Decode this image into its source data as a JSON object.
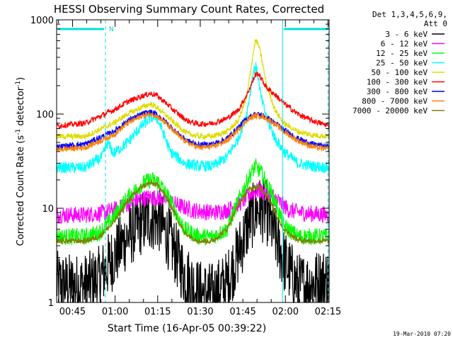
{
  "chart_data": {
    "type": "line",
    "title": "HESSI Observing Summary Count Rates, Corrected",
    "xlabel": "Start Time (16-Apr-05 00:39:22)",
    "ylabel_main": "Corrected Count Rate (s",
    "ylabel_sup1": "-1",
    "ylabel_mid": " detector",
    "ylabel_sup2": "-1",
    "ylabel_end": ")",
    "yscale": "log",
    "ylim": [
      1,
      1000
    ],
    "xlim_minutes": [
      0,
      96
    ],
    "x_ticks": [
      {
        "label": "00:45",
        "t": 5.6
      },
      {
        "label": "01:00",
        "t": 20.6
      },
      {
        "label": "01:15",
        "t": 35.6
      },
      {
        "label": "01:30",
        "t": 50.6
      },
      {
        "label": "01:45",
        "t": 65.6
      },
      {
        "label": "02:00",
        "t": 80.6
      },
      {
        "label": "02:15",
        "t": 95.6
      }
    ],
    "y_ticks": [
      {
        "label": "1",
        "v": 1
      },
      {
        "label": "10",
        "v": 10
      },
      {
        "label": "100",
        "v": 100
      },
      {
        "label": "1000",
        "v": 1000
      }
    ],
    "legend_header_1": "Det 1,3,4,5,6,9,",
    "legend_header_2": "Att 0",
    "legend_position": "right",
    "night_markers": [
      {
        "start": 0,
        "end": 17.2,
        "label": ""
      },
      {
        "start": 79.6,
        "end": 96,
        "label": ""
      }
    ],
    "saa_label": "N",
    "vertical_lines": [
      {
        "t": 17.2,
        "style": "dashed"
      },
      {
        "t": 79.6,
        "style": "solid"
      },
      {
        "t": 95.6,
        "style": "dashed"
      }
    ],
    "series": [
      {
        "name": "3 - 6 keV",
        "color": "#000000",
        "times": [
          0,
          5,
          10,
          15,
          20,
          25,
          30,
          33,
          36,
          40,
          45,
          50,
          55,
          60,
          65,
          68,
          71,
          74,
          77,
          80,
          85,
          90,
          96
        ],
        "values": [
          1.6,
          1.5,
          1.5,
          1.8,
          3.0,
          5.0,
          7.0,
          7.8,
          7.5,
          4.5,
          2.0,
          1.3,
          1.2,
          1.6,
          4.0,
          7.5,
          10.0,
          9.0,
          5.0,
          2.8,
          1.5,
          1.6,
          1.8
        ]
      },
      {
        "name": "6 - 12 keV",
        "color": "#ff00ff",
        "times": [
          0,
          10,
          17,
          22,
          27,
          32,
          35,
          38,
          42,
          48,
          55,
          60,
          65,
          68,
          71,
          74,
          78,
          82,
          88,
          96
        ],
        "values": [
          8.5,
          8.5,
          9.0,
          10.0,
          12.0,
          13.0,
          13.0,
          12.5,
          11.0,
          9.5,
          9.0,
          9.5,
          11.5,
          14.0,
          15.5,
          14.5,
          12.0,
          9.5,
          8.8,
          8.5
        ]
      },
      {
        "name": "12 - 25 keV",
        "color": "#00ff00",
        "times": [
          0,
          10,
          15,
          20,
          25,
          30,
          33,
          36,
          40,
          45,
          50,
          55,
          60,
          64,
          68,
          70,
          72,
          74,
          77,
          80,
          85,
          90,
          96
        ],
        "values": [
          5.0,
          5.0,
          5.5,
          8.0,
          13.0,
          18.0,
          20.0,
          19.0,
          12.0,
          6.0,
          5.0,
          5.0,
          6.0,
          12.0,
          22.0,
          28.0,
          24.0,
          18.0,
          12.0,
          6.5,
          5.0,
          5.0,
          5.0
        ]
      },
      {
        "name": "25 - 50 keV",
        "color": "#00ffff",
        "times": [
          0,
          10,
          16,
          18,
          20,
          25,
          30,
          33,
          35,
          37,
          40,
          45,
          50,
          55,
          60,
          64,
          67,
          69,
          70,
          71,
          72,
          74,
          77,
          80,
          85,
          90,
          96
        ],
        "values": [
          27,
          27,
          35,
          50,
          38,
          50,
          75,
          90,
          95,
          70,
          40,
          30,
          28,
          28,
          35,
          55,
          100,
          250,
          330,
          250,
          150,
          90,
          55,
          40,
          30,
          28,
          27
        ]
      },
      {
        "name": "50 - 100 keV",
        "color": "#dddd00",
        "times": [
          0,
          10,
          20,
          25,
          30,
          33,
          35,
          38,
          42,
          46,
          50,
          55,
          60,
          64,
          67,
          69,
          70,
          71,
          72,
          74,
          77,
          80,
          85,
          90,
          96
        ],
        "values": [
          58,
          58,
          80,
          100,
          118,
          128,
          120,
          100,
          78,
          62,
          58,
          58,
          65,
          85,
          150,
          400,
          600,
          560,
          420,
          200,
          110,
          80,
          65,
          60,
          58
        ]
      },
      {
        "name": "100 - 300 keV",
        "color": "#ff0000",
        "times": [
          0,
          10,
          20,
          25,
          30,
          33,
          35,
          38,
          42,
          46,
          50,
          55,
          60,
          64,
          67,
          69,
          70,
          71,
          72,
          74,
          77,
          80,
          85,
          90,
          96
        ],
        "values": [
          75,
          80,
          110,
          135,
          155,
          165,
          160,
          135,
          105,
          85,
          78,
          80,
          90,
          110,
          160,
          220,
          260,
          270,
          240,
          190,
          160,
          130,
          100,
          85,
          75
        ]
      },
      {
        "name": "300 - 800 keV",
        "color": "#0000ff",
        "times": [
          0,
          10,
          20,
          25,
          30,
          33,
          35,
          38,
          42,
          46,
          50,
          55,
          60,
          64,
          67,
          70,
          72,
          74,
          77,
          80,
          85,
          90,
          96
        ],
        "values": [
          45,
          48,
          65,
          85,
          100,
          105,
          100,
          85,
          65,
          52,
          47,
          48,
          55,
          72,
          90,
          100,
          98,
          92,
          80,
          68,
          55,
          48,
          45
        ]
      },
      {
        "name": "800 - 7000 keV",
        "color": "#ff8000",
        "times": [
          0,
          10,
          20,
          25,
          30,
          33,
          35,
          38,
          42,
          46,
          50,
          55,
          60,
          64,
          67,
          70,
          72,
          74,
          77,
          80,
          85,
          90,
          96
        ],
        "values": [
          42,
          44,
          60,
          80,
          95,
          100,
          97,
          82,
          62,
          50,
          44,
          45,
          52,
          68,
          86,
          96,
          95,
          90,
          78,
          65,
          52,
          45,
          42
        ]
      },
      {
        "name": "7000 - 20000 keV",
        "color": "#808000",
        "times": [
          0,
          10,
          15,
          20,
          25,
          30,
          33,
          36,
          40,
          45,
          50,
          55,
          60,
          64,
          68,
          71,
          74,
          77,
          80,
          85,
          90,
          96
        ],
        "values": [
          4.5,
          4.5,
          5.0,
          7.0,
          12.0,
          17.0,
          18.5,
          17.5,
          11.0,
          5.5,
          4.5,
          4.5,
          6.0,
          11.0,
          16.0,
          17.0,
          14.0,
          9.0,
          6.0,
          4.6,
          4.5,
          4.5
        ]
      }
    ]
  },
  "footer": {
    "timestamp": "19-Mar-2010 07:20"
  }
}
